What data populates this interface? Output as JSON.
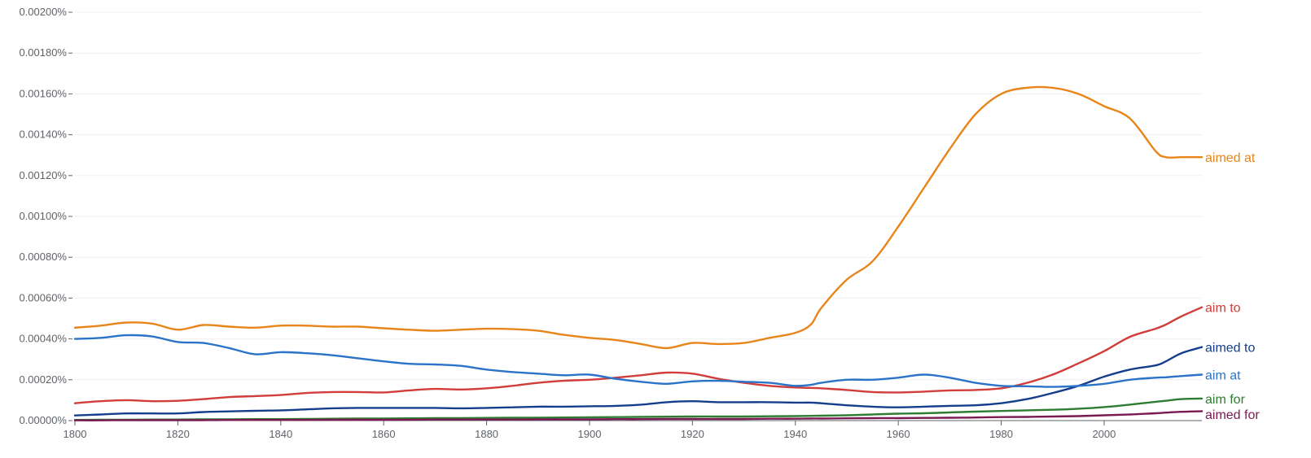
{
  "chart_data": {
    "type": "line",
    "title": "",
    "xlabel": "",
    "ylabel": "",
    "xlim": [
      1800,
      2019
    ],
    "ylim": [
      0,
      0.002
    ],
    "grid": true,
    "legend": "right-end-labels",
    "y_ticks": [
      {
        "value": 0.0,
        "label": "0.00000%"
      },
      {
        "value": 0.0002,
        "label": "0.00020%"
      },
      {
        "value": 0.0004,
        "label": "0.00040%"
      },
      {
        "value": 0.0006,
        "label": "0.00060%"
      },
      {
        "value": 0.0008,
        "label": "0.00080%"
      },
      {
        "value": 0.001,
        "label": "0.00100%"
      },
      {
        "value": 0.0012,
        "label": "0.00120%"
      },
      {
        "value": 0.0014,
        "label": "0.00140%"
      },
      {
        "value": 0.0016,
        "label": "0.00160%"
      },
      {
        "value": 0.0018,
        "label": "0.00180%"
      },
      {
        "value": 0.002,
        "label": "0.00200%"
      }
    ],
    "x_ticks": [
      {
        "value": 1800,
        "label": "1800"
      },
      {
        "value": 1820,
        "label": "1820"
      },
      {
        "value": 1840,
        "label": "1840"
      },
      {
        "value": 1860,
        "label": "1860"
      },
      {
        "value": 1880,
        "label": "1880"
      },
      {
        "value": 1900,
        "label": "1900"
      },
      {
        "value": 1920,
        "label": "1920"
      },
      {
        "value": 1940,
        "label": "1940"
      },
      {
        "value": 1960,
        "label": "1960"
      },
      {
        "value": 1980,
        "label": "1980"
      },
      {
        "value": 2000,
        "label": "2000"
      }
    ],
    "x": [
      1800,
      1805,
      1810,
      1815,
      1820,
      1825,
      1830,
      1835,
      1840,
      1845,
      1850,
      1855,
      1860,
      1865,
      1870,
      1875,
      1880,
      1885,
      1890,
      1895,
      1900,
      1905,
      1910,
      1915,
      1920,
      1925,
      1930,
      1935,
      1940,
      1943,
      1945,
      1950,
      1955,
      1960,
      1965,
      1970,
      1975,
      1980,
      1985,
      1990,
      1995,
      2000,
      2005,
      2010,
      2012,
      2015,
      2019
    ],
    "series": [
      {
        "name": "aimed at",
        "color": "#e8851a",
        "values": [
          0.000455,
          0.000465,
          0.00048,
          0.000475,
          0.000445,
          0.000468,
          0.00046,
          0.000455,
          0.000465,
          0.000465,
          0.00046,
          0.00046,
          0.000452,
          0.000445,
          0.00044,
          0.000445,
          0.00045,
          0.000448,
          0.00044,
          0.00042,
          0.000405,
          0.000395,
          0.000375,
          0.000355,
          0.00038,
          0.000375,
          0.00038,
          0.000405,
          0.00043,
          0.00047,
          0.00055,
          0.00069,
          0.00078,
          0.00095,
          0.00114,
          0.00133,
          0.0015,
          0.0016,
          0.00163,
          0.00163,
          0.0016,
          0.00154,
          0.00148,
          0.00132,
          0.00129,
          0.00129,
          0.00129
        ]
      },
      {
        "name": "aim to",
        "color": "#d03d3a",
        "values": [
          8.5e-05,
          9.5e-05,
          0.0001,
          9.5e-05,
          9.7e-05,
          0.000105,
          0.000115,
          0.00012,
          0.000125,
          0.000135,
          0.00014,
          0.00014,
          0.000138,
          0.000148,
          0.000155,
          0.000152,
          0.000158,
          0.00017,
          0.000185,
          0.000195,
          0.0002,
          0.00021,
          0.000222,
          0.000235,
          0.00023,
          0.000205,
          0.000185,
          0.00017,
          0.000162,
          0.00016,
          0.000158,
          0.00015,
          0.00014,
          0.000138,
          0.000142,
          0.000148,
          0.00015,
          0.000158,
          0.000185,
          0.000225,
          0.00028,
          0.00034,
          0.00041,
          0.00045,
          0.00047,
          0.00051,
          0.000555
        ]
      },
      {
        "name": "aimed to",
        "color": "#143e8c",
        "values": [
          2.5e-05,
          3e-05,
          3.5e-05,
          3.5e-05,
          3.5e-05,
          4.2e-05,
          4.5e-05,
          4.8e-05,
          5e-05,
          5.5e-05,
          6e-05,
          6.2e-05,
          6.2e-05,
          6.2e-05,
          6.2e-05,
          6e-05,
          6.2e-05,
          6.5e-05,
          6.8e-05,
          6.8e-05,
          7e-05,
          7.2e-05,
          7.8e-05,
          9e-05,
          9.5e-05,
          9e-05,
          9e-05,
          9e-05,
          8.8e-05,
          8.8e-05,
          8.5e-05,
          7.5e-05,
          6.8e-05,
          6.5e-05,
          6.8e-05,
          7.2e-05,
          7.5e-05,
          8.5e-05,
          0.000105,
          0.000135,
          0.00017,
          0.000215,
          0.00025,
          0.00027,
          0.00029,
          0.00033,
          0.00036
        ]
      },
      {
        "name": "aim at",
        "color": "#2a73c8",
        "values": [
          0.0004,
          0.000405,
          0.000418,
          0.000412,
          0.000385,
          0.00038,
          0.000355,
          0.000325,
          0.000335,
          0.00033,
          0.00032,
          0.000305,
          0.00029,
          0.000278,
          0.000275,
          0.000268,
          0.00025,
          0.000238,
          0.00023,
          0.000222,
          0.000225,
          0.000205,
          0.00019,
          0.00018,
          0.000192,
          0.000195,
          0.00019,
          0.000185,
          0.00017,
          0.000175,
          0.000185,
          0.0002,
          0.0002,
          0.00021,
          0.000225,
          0.00021,
          0.000185,
          0.00017,
          0.000168,
          0.000165,
          0.00017,
          0.00018,
          0.0002,
          0.00021,
          0.000212,
          0.000218,
          0.000225
        ]
      },
      {
        "name": "aim for",
        "color": "#2e7d32",
        "values": [
          3e-06,
          4e-06,
          4e-06,
          5e-06,
          5e-06,
          6e-06,
          6e-06,
          7e-06,
          7e-06,
          8e-06,
          9e-06,
          1e-05,
          1e-05,
          1.1e-05,
          1.2e-05,
          1.2e-05,
          1.3e-05,
          1.4e-05,
          1.4e-05,
          1.5e-05,
          1.6e-05,
          1.7e-05,
          1.8e-05,
          1.9e-05,
          2e-05,
          2e-05,
          2e-05,
          2.1e-05,
          2.2e-05,
          2.3e-05,
          2.4e-05,
          2.6e-05,
          3e-05,
          3.4e-05,
          3.6e-05,
          4e-05,
          4.4e-05,
          4.7e-05,
          5e-05,
          5.3e-05,
          5.8e-05,
          6.6e-05,
          7.8e-05,
          9.2e-05,
          9.7e-05,
          0.000105,
          0.000108
        ]
      },
      {
        "name": "aimed for",
        "color": "#7b1a52",
        "values": [
          1e-06,
          1e-06,
          2e-06,
          2e-06,
          2e-06,
          2e-06,
          3e-06,
          3e-06,
          3e-06,
          3e-06,
          4e-06,
          4e-06,
          4e-06,
          4e-06,
          5e-06,
          5e-06,
          5e-06,
          5e-06,
          6e-06,
          6e-06,
          6e-06,
          7e-06,
          7e-06,
          8e-06,
          8e-06,
          8e-06,
          8e-06,
          9e-06,
          9e-06,
          1e-05,
          1e-05,
          1.1e-05,
          1.2e-05,
          1.2e-05,
          1.3e-05,
          1.4e-05,
          1.5e-05,
          1.7e-05,
          1.8e-05,
          2e-05,
          2.2e-05,
          2.6e-05,
          3e-05,
          3.6e-05,
          3.9e-05,
          4.3e-05,
          4.6e-05
        ]
      }
    ]
  }
}
